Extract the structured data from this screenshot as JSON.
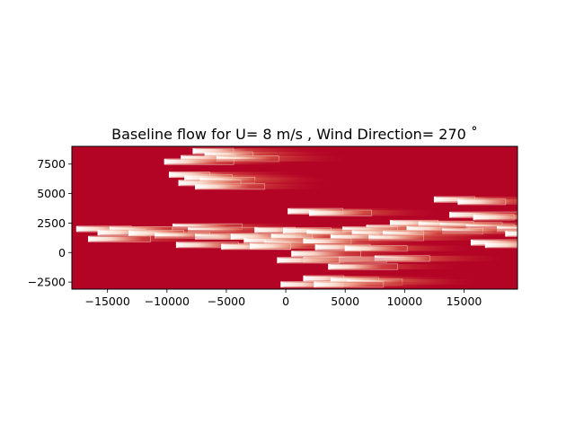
{
  "chart_data": {
    "type": "heatmap",
    "title": "Baseline flow for U= 8 m/s  ,  Wind Direction= 270  ˚",
    "xlabel": "",
    "ylabel": "",
    "xlim": [
      -18000,
      19500
    ],
    "ylim": [
      -3100,
      9000
    ],
    "x_ticks": [
      -15000,
      -10000,
      -5000,
      0,
      5000,
      10000,
      15000
    ],
    "x_tick_labels": [
      "−15000",
      "−10000",
      "−5000",
      "0",
      "5000",
      "10000",
      "15000"
    ],
    "y_ticks": [
      -2500,
      0,
      2500,
      5000,
      7500
    ],
    "y_tick_labels": [
      "−2500",
      "0",
      "2500",
      "5000",
      "7500"
    ],
    "grid": false,
    "colors": {
      "freestream": "#b40426",
      "wake_mid": "#e0654f",
      "wake_deep": "#f3c3ab",
      "wake_core": "#ffffff",
      "contour": "#f6d3c2"
    },
    "wakes": [
      {
        "x": -7800,
        "y": 8600
      },
      {
        "x": -6800,
        "y": 8300
      },
      {
        "x": -8800,
        "y": 8000
      },
      {
        "x": -5800,
        "y": 7950
      },
      {
        "x": -10200,
        "y": 7700
      },
      {
        "x": -9800,
        "y": 6600
      },
      {
        "x": -8500,
        "y": 6350
      },
      {
        "x": -7200,
        "y": 6150
      },
      {
        "x": -9000,
        "y": 5900
      },
      {
        "x": -7600,
        "y": 5600
      },
      {
        "x": 12500,
        "y": 4500
      },
      {
        "x": 14500,
        "y": 4300
      },
      {
        "x": 200,
        "y": 3500
      },
      {
        "x": 2000,
        "y": 3350
      },
      {
        "x": 13800,
        "y": 3200
      },
      {
        "x": 15800,
        "y": 3000
      },
      {
        "x": 8800,
        "y": 2500
      },
      {
        "x": 11200,
        "y": 2400
      },
      {
        "x": 13000,
        "y": 2300
      },
      {
        "x": -9500,
        "y": 2200
      },
      {
        "x": 6800,
        "y": 2100
      },
      {
        "x": 15200,
        "y": 2150
      },
      {
        "x": -17600,
        "y": 2000
      },
      {
        "x": -14800,
        "y": 1950
      },
      {
        "x": -8200,
        "y": 1900
      },
      {
        "x": -2600,
        "y": 1900
      },
      {
        "x": -200,
        "y": 1850
      },
      {
        "x": 4800,
        "y": 1950
      },
      {
        "x": 10200,
        "y": 2000
      },
      {
        "x": 17800,
        "y": 2000
      },
      {
        "x": 13200,
        "y": 1800
      },
      {
        "x": -15800,
        "y": 1700
      },
      {
        "x": -13200,
        "y": 1650
      },
      {
        "x": 1800,
        "y": 1700
      },
      {
        "x": 5600,
        "y": 1650
      },
      {
        "x": 8200,
        "y": 1600
      },
      {
        "x": 18500,
        "y": 1600
      },
      {
        "x": -11000,
        "y": 1450
      },
      {
        "x": -7600,
        "y": 1350
      },
      {
        "x": -4600,
        "y": 1350
      },
      {
        "x": -1200,
        "y": 1350
      },
      {
        "x": 3800,
        "y": 1300
      },
      {
        "x": 7000,
        "y": 1250
      },
      {
        "x": -16600,
        "y": 1150
      },
      {
        "x": -3500,
        "y": 1000
      },
      {
        "x": -1800,
        "y": 800
      },
      {
        "x": 1500,
        "y": 950
      },
      {
        "x": 15600,
        "y": 850
      },
      {
        "x": -9200,
        "y": 650
      },
      {
        "x": -5400,
        "y": 500
      },
      {
        "x": -3000,
        "y": 550
      },
      {
        "x": 16800,
        "y": 650
      },
      {
        "x": 2500,
        "y": 450
      },
      {
        "x": 5000,
        "y": 350
      },
      {
        "x": 500,
        "y": -100
      },
      {
        "x": 1500,
        "y": -600
      },
      {
        "x": 4500,
        "y": -600
      },
      {
        "x": 7500,
        "y": -500
      },
      {
        "x": -700,
        "y": -650
      },
      {
        "x": 3600,
        "y": -1200
      },
      {
        "x": 1500,
        "y": -2200
      },
      {
        "x": 3800,
        "y": -2350
      },
      {
        "x": 5200,
        "y": -2500
      },
      {
        "x": -400,
        "y": -2700
      },
      {
        "x": 2400,
        "y": -2700
      }
    ]
  }
}
